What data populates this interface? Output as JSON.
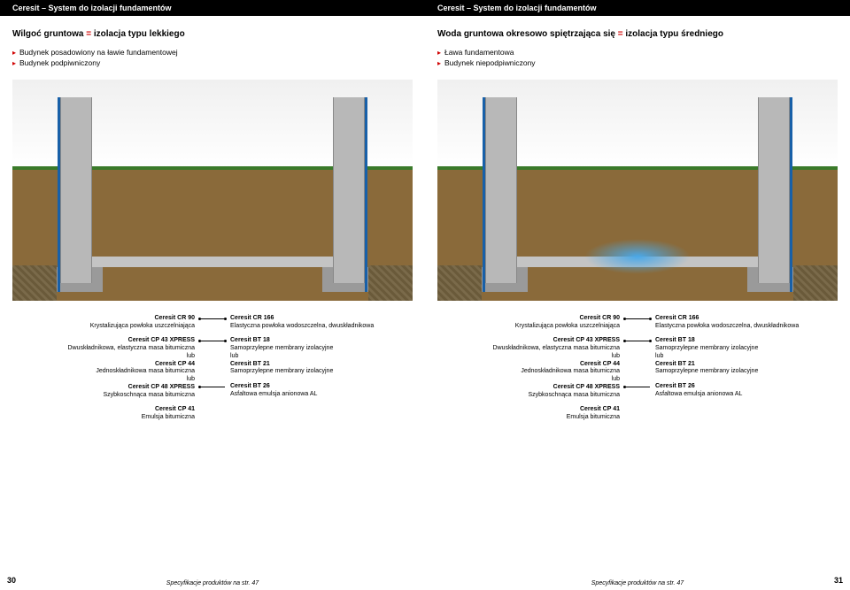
{
  "header": "Ceresit – System do izolacji fundamentów",
  "spec_note": "Specyfikacje produktów na str. 47",
  "equals_sign": "=",
  "or_word": "lub",
  "pages": {
    "left": {
      "number": "30",
      "subhead_a": "Wilgoć gruntowa",
      "subhead_b": "izolacja typu lekkiego",
      "bullets": [
        "Budynek posadowiony na ławie fundamentowej",
        "Budynek podpiwniczony"
      ],
      "has_water": false
    },
    "right": {
      "number": "31",
      "subhead_a": "Woda gruntowa okresowo spiętrzająca się",
      "subhead_b": "izolacja typu średniego",
      "bullets": [
        "Ława fundamentowa",
        "Budynek niepodpiwniczony"
      ],
      "has_water": true
    }
  },
  "left_column": [
    {
      "name": "Ceresit CR 90",
      "desc": "Krystalizująca powłoka uszczelniająca"
    },
    {
      "name": "Ceresit CP 43 XPRESS",
      "desc": "Dwuskładnikowa, elastyczna masa bitumiczna",
      "or": true,
      "name2": "Ceresit CP 44",
      "desc2": "Jednoskładnikowa masa bitumiczna",
      "or2": true,
      "name3": "Ceresit CP 48 XPRESS",
      "desc3": "Szybkoschnąca masa bitumiczna"
    },
    {
      "name": "Ceresit CP 41",
      "desc": "Emulsja bitumiczna"
    }
  ],
  "right_column": [
    {
      "name": "Ceresit CR 166",
      "desc": "Elastyczna powłoka wodoszczelna, dwuskładnikowa"
    },
    {
      "name": "Ceresit BT 18",
      "desc": "Samoprzylepne membrany izolacyjne",
      "or": true,
      "name2": "Ceresit BT 21",
      "desc2": "Samoprzylepne membrany izolacyjne"
    },
    {
      "name": "Ceresit BT 26",
      "desc": "Asfaltowa emulsja anionowa AL"
    }
  ],
  "colors": {
    "accent": "#d00000",
    "header_bg": "#000000",
    "header_fg": "#ffffff"
  }
}
